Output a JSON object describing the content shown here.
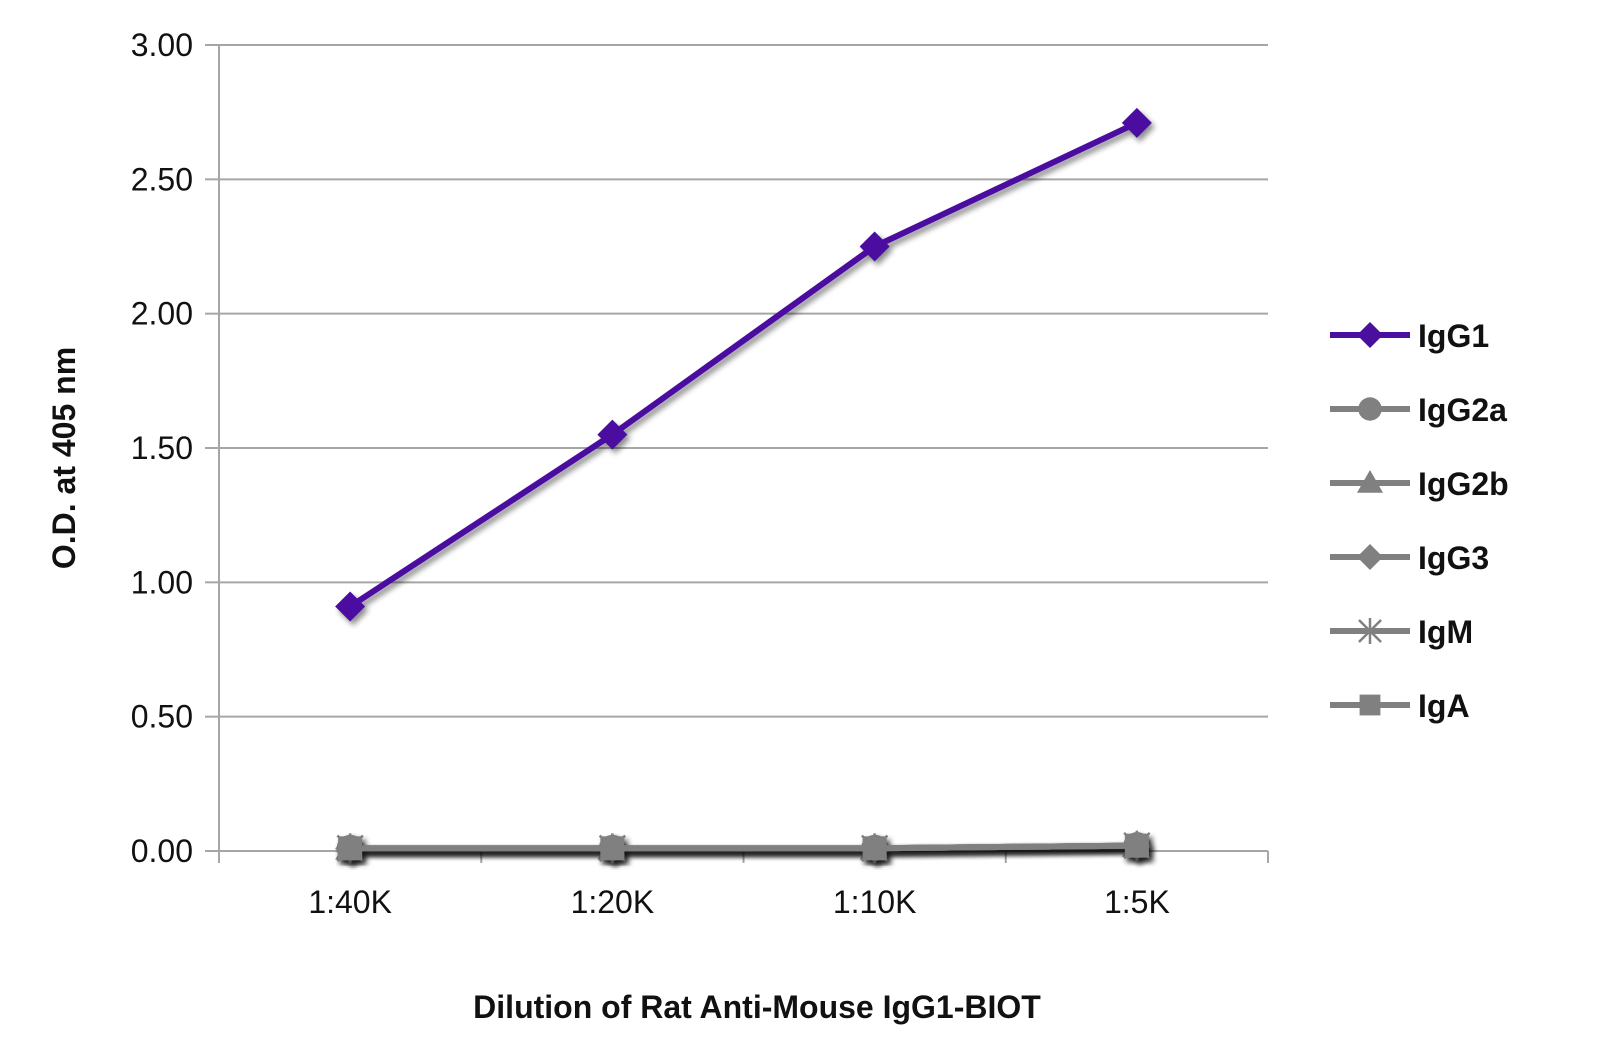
{
  "chart_data": {
    "type": "line",
    "title": "",
    "xlabel": "Dilution of Rat Anti-Mouse IgG1-BIOT",
    "ylabel": "O.D. at 405 nm",
    "categories": [
      "1:40K",
      "1:20K",
      "1:10K",
      "1:5K"
    ],
    "ylim": [
      0,
      3
    ],
    "yticks": [
      "0.00",
      "0.50",
      "1.00",
      "1.50",
      "2.00",
      "2.50",
      "3.00"
    ],
    "grid": true,
    "legend_position": "right",
    "series": [
      {
        "name": "IgG1",
        "marker": "diamond",
        "color": "#4b0fa0",
        "values": [
          0.91,
          1.55,
          2.25,
          2.71
        ]
      },
      {
        "name": "IgG2a",
        "marker": "circle",
        "color": "#808080",
        "values": [
          0.01,
          0.01,
          0.01,
          0.02
        ]
      },
      {
        "name": "IgG2b",
        "marker": "triangle",
        "color": "#808080",
        "values": [
          0.01,
          0.01,
          0.01,
          0.02
        ]
      },
      {
        "name": "IgG3",
        "marker": "diamond",
        "color": "#808080",
        "values": [
          0.01,
          0.01,
          0.01,
          0.02
        ]
      },
      {
        "name": "IgM",
        "marker": "star",
        "color": "#808080",
        "values": [
          0.01,
          0.01,
          0.01,
          0.02
        ]
      },
      {
        "name": "IgA",
        "marker": "square",
        "color": "#808080",
        "values": [
          0.01,
          0.01,
          0.01,
          0.02
        ]
      }
    ]
  }
}
